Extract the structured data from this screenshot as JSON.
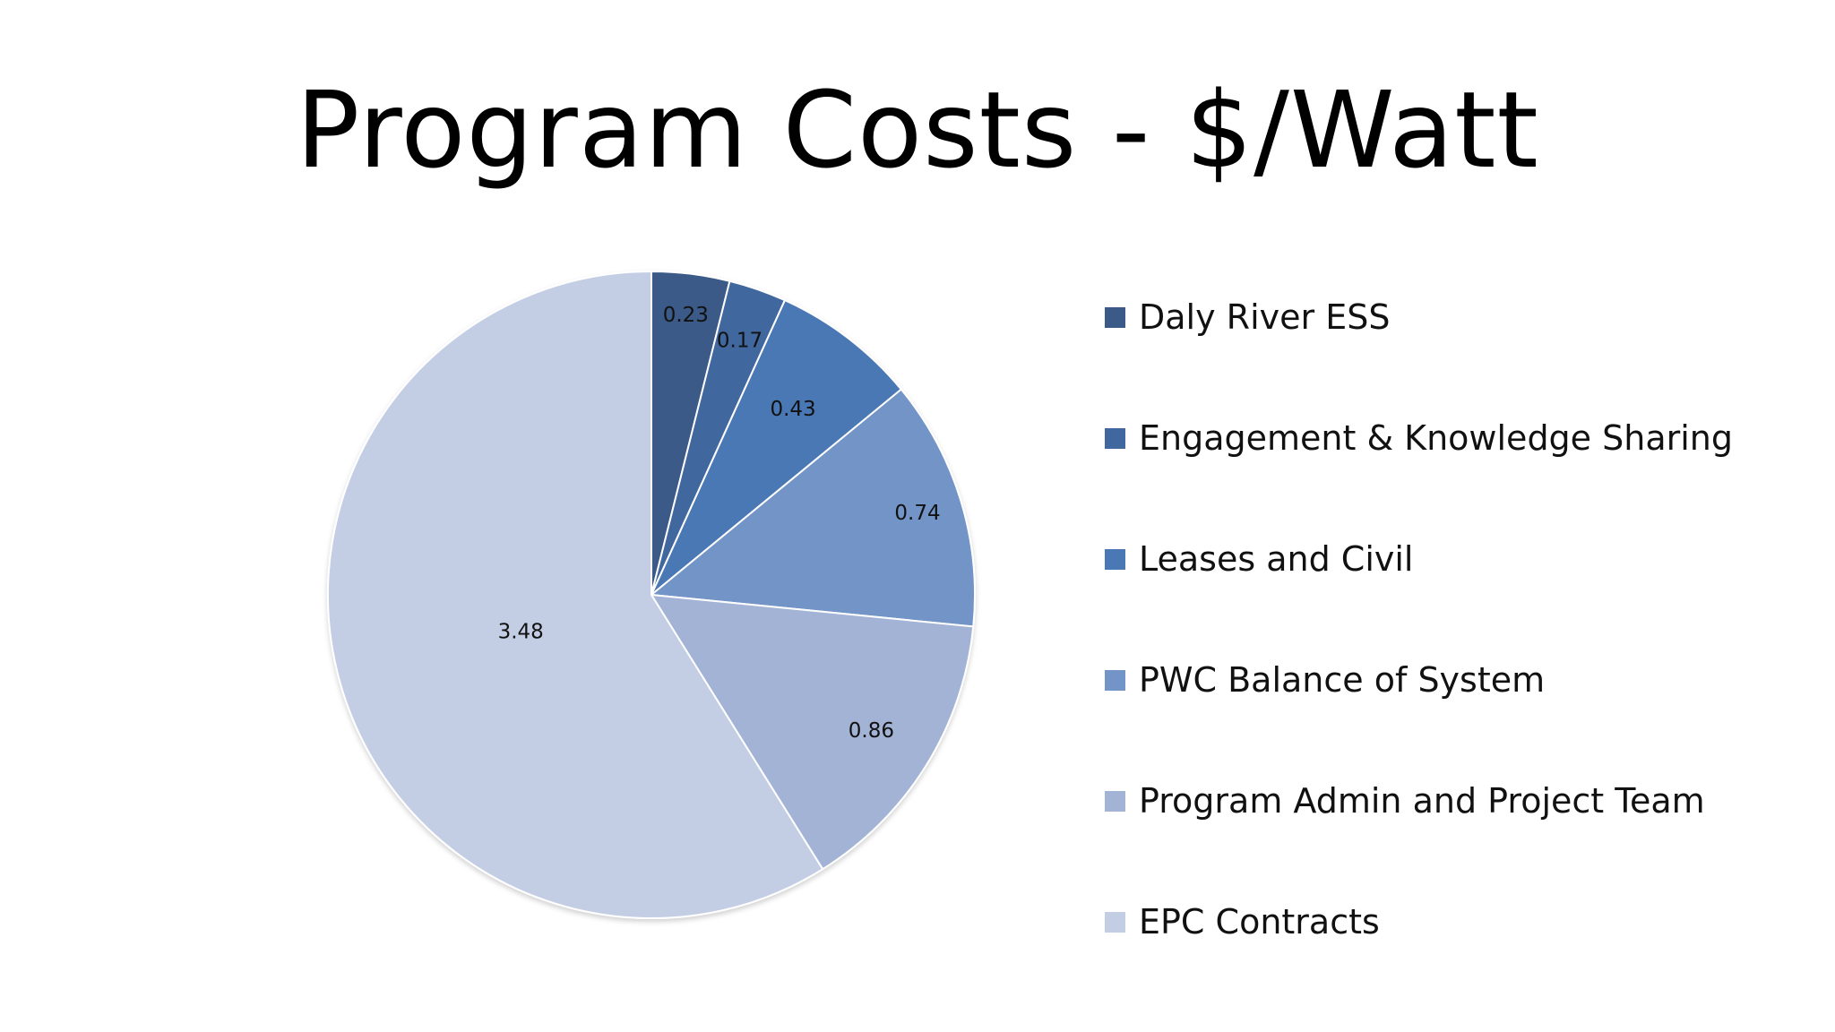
{
  "chart_data": {
    "type": "pie",
    "title": "Program Costs - $/Watt",
    "categories": [
      "Daly River ESS",
      "Engagement & Knowledge Sharing",
      "Leases and Civil",
      "PWC Balance of System",
      "Program Admin and Project Team",
      "EPC Contracts"
    ],
    "values": [
      0.23,
      0.17,
      0.43,
      0.74,
      0.86,
      3.48
    ],
    "data_labels": [
      "0.23",
      "0.17",
      "0.43",
      "0.74",
      "0.86",
      "3.48"
    ],
    "colors": [
      "#3b5a87",
      "#41689e",
      "#4a78b4",
      "#7294c6",
      "#a2b3d5",
      "#c3cde4"
    ],
    "legend_position": "right",
    "start_angle": "12 o'clock",
    "direction": "clockwise"
  }
}
